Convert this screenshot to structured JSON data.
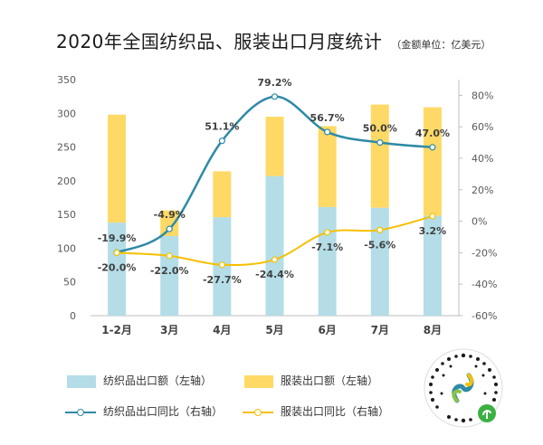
{
  "title": "2020年全国纺织品、服装出口月度统计",
  "unit_note": "（金额单位：亿美元）",
  "colors": {
    "textile_bar": "#b4dde7",
    "apparel_bar": "#ffd966",
    "textile_line": "#2e8aa6",
    "apparel_line": "#f5c000"
  },
  "legend": [
    {
      "label": "纺织品出口额（左轴）",
      "kind": "bar",
      "color": "#b4dde7"
    },
    {
      "label": "服装出口额（左轴）",
      "kind": "bar",
      "color": "#ffd966"
    },
    {
      "label": "纺织品出口同比（右轴）",
      "kind": "line",
      "color": "#2e8aa6"
    },
    {
      "label": "服装出口同比（右轴）",
      "kind": "line",
      "color": "#f5c000"
    }
  ],
  "chart_data": {
    "type": "bar",
    "categories": [
      "1-2月",
      "3月",
      "4月",
      "5月",
      "6月",
      "7月",
      "8月"
    ],
    "y_left": {
      "min": 0,
      "max": 350,
      "ticks": [
        "0",
        "50",
        "100",
        "150",
        "200",
        "250",
        "300",
        "350"
      ]
    },
    "y_right": {
      "min": -60,
      "max": 90,
      "ticks": [
        "-60%",
        "-40%",
        "-20%",
        "0%",
        "20%",
        "40%",
        "60%",
        "80%"
      ]
    },
    "series": [
      {
        "name": "纺织品出口额（左轴）",
        "kind": "stacked-bar",
        "axis": "left",
        "values": [
          138,
          118,
          146,
          207,
          161,
          160,
          148
        ]
      },
      {
        "name": "服装出口额（左轴）",
        "kind": "stacked-bar",
        "axis": "left",
        "values": [
          160,
          38,
          68,
          88,
          120,
          153,
          161
        ]
      },
      {
        "name": "纺织品出口同比（右轴）",
        "kind": "line",
        "axis": "right",
        "values": [
          -19.9,
          -4.9,
          51.1,
          79.2,
          56.7,
          50.0,
          47.0
        ],
        "labels": [
          "-19.9%",
          "-4.9%",
          "51.1%",
          "79.2%",
          "56.7%",
          "50.0%",
          "47.0%"
        ]
      },
      {
        "name": "服装出口同比（右轴）",
        "kind": "line",
        "axis": "right",
        "values": [
          -20.0,
          -22.0,
          -27.7,
          -24.4,
          -7.1,
          -5.6,
          3.2
        ],
        "labels": [
          "-20.0%",
          "-22.0%",
          "-27.7%",
          "-24.4%",
          "-7.1%",
          "-5.6%",
          "3.2%"
        ]
      }
    ]
  }
}
